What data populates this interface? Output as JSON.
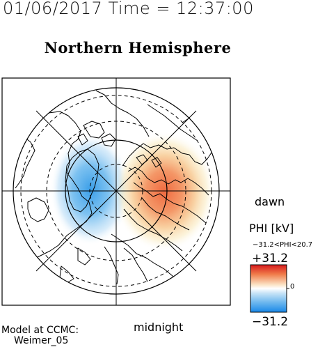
{
  "header": {
    "datetime": "01/06/2017 Time = 12:37:00"
  },
  "map": {
    "title": "Northern Hemisphere",
    "label_bottom": "midnight",
    "label_right": "dawn",
    "projection": "polar stereographic",
    "negative_cell_color": "#3a9ee8",
    "positive_cell_color": "#f06a40"
  },
  "legend": {
    "title": "PHI [kV]",
    "range_text": "−31.2<PHI<20.7",
    "max_label": "+31.2",
    "min_label": "−31.2",
    "zero_label": "0",
    "colors": [
      "#2b8cee",
      "#ffffff",
      "#e53a2a"
    ]
  },
  "credit": {
    "line1": "Model at CCMC:",
    "line2": "Weimer_05"
  }
}
